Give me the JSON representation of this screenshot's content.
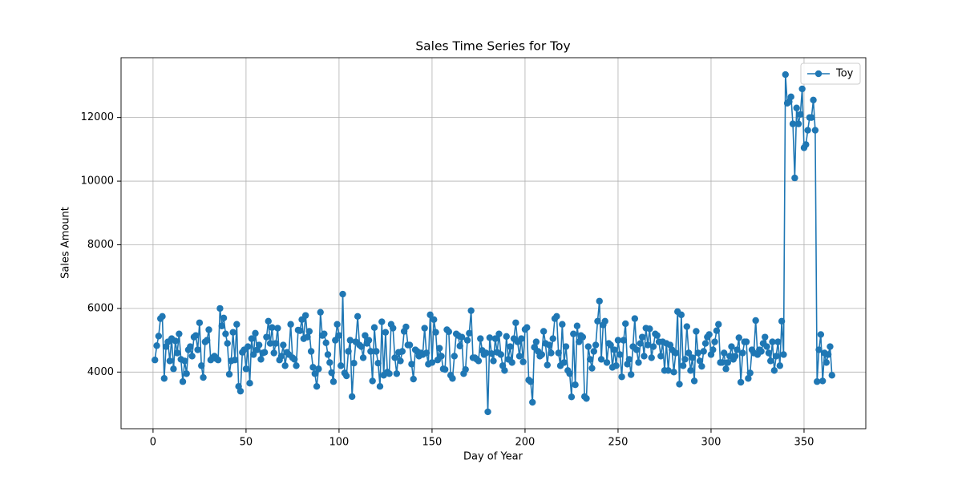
{
  "chart_data": {
    "type": "line",
    "title": "Sales Time Series for Toy",
    "xlabel": "Day of Year",
    "ylabel": "Sales Amount",
    "x": [
      1,
      2,
      3,
      4,
      5,
      6,
      7,
      8,
      9,
      10,
      11,
      12,
      13,
      14,
      15,
      16,
      17,
      18,
      19,
      20,
      21,
      22,
      23,
      24,
      25,
      26,
      27,
      28,
      29,
      30,
      31,
      32,
      33,
      34,
      35,
      36,
      37,
      38,
      39,
      40,
      41,
      42,
      43,
      44,
      45,
      46,
      47,
      48,
      49,
      50,
      51,
      52,
      53,
      54,
      55,
      56,
      57,
      58,
      59,
      60,
      61,
      62,
      63,
      64,
      65,
      66,
      67,
      68,
      69,
      70,
      71,
      72,
      73,
      74,
      75,
      76,
      77,
      78,
      79,
      80,
      81,
      82,
      83,
      84,
      85,
      86,
      87,
      88,
      89,
      90,
      91,
      92,
      93,
      94,
      95,
      96,
      97,
      98,
      99,
      100,
      101,
      102,
      103,
      104,
      105,
      106,
      107,
      108,
      109,
      110,
      111,
      112,
      113,
      114,
      115,
      116,
      117,
      118,
      119,
      120,
      121,
      122,
      123,
      124,
      125,
      126,
      127,
      128,
      129,
      130,
      131,
      132,
      133,
      134,
      135,
      136,
      137,
      138,
      139,
      140,
      141,
      142,
      143,
      144,
      145,
      146,
      147,
      148,
      149,
      150,
      151,
      152,
      153,
      154,
      155,
      156,
      157,
      158,
      159,
      160,
      161,
      162,
      163,
      164,
      165,
      166,
      167,
      168,
      169,
      170,
      171,
      172,
      173,
      174,
      175,
      176,
      177,
      178,
      179,
      180,
      181,
      182,
      183,
      184,
      185,
      186,
      187,
      188,
      189,
      190,
      191,
      192,
      193,
      194,
      195,
      196,
      197,
      198,
      199,
      200,
      201,
      202,
      203,
      204,
      205,
      206,
      207,
      208,
      209,
      210,
      211,
      212,
      213,
      214,
      215,
      216,
      217,
      218,
      219,
      220,
      221,
      222,
      223,
      224,
      225,
      226,
      227,
      228,
      229,
      230,
      231,
      232,
      233,
      234,
      235,
      236,
      237,
      238,
      239,
      240,
      241,
      242,
      243,
      244,
      245,
      246,
      247,
      248,
      249,
      250,
      251,
      252,
      253,
      254,
      255,
      256,
      257,
      258,
      259,
      260,
      261,
      262,
      263,
      264,
      265,
      266,
      267,
      268,
      269,
      270,
      271,
      272,
      273,
      274,
      275,
      276,
      277,
      278,
      279,
      280,
      281,
      282,
      283,
      284,
      285,
      286,
      287,
      288,
      289,
      290,
      291,
      292,
      293,
      294,
      295,
      296,
      297,
      298,
      299,
      300,
      301,
      302,
      303,
      304,
      305,
      306,
      307,
      308,
      309,
      310,
      311,
      312,
      313,
      314,
      315,
      316,
      317,
      318,
      319,
      320,
      321,
      322,
      323,
      324,
      325,
      326,
      327,
      328,
      329,
      330,
      331,
      332,
      333,
      334,
      335,
      336,
      337,
      338,
      339,
      340,
      341,
      342,
      343,
      344,
      345,
      346,
      347,
      348,
      349,
      350,
      351,
      352,
      353,
      354,
      355,
      356,
      357,
      358,
      359,
      360,
      361,
      362,
      363,
      364,
      365
    ],
    "series": [
      {
        "name": "Toy",
        "color": "#1f77b4",
        "values": [
          4380,
          4830,
          5130,
          5680,
          5750,
          3800,
          4800,
          4950,
          4350,
          5050,
          4100,
          4980,
          4600,
          5200,
          4400,
          3700,
          4350,
          3950,
          4700,
          4800,
          4500,
          5100,
          5150,
          4700,
          5550,
          4200,
          3830,
          4950,
          5000,
          5330,
          4380,
          4450,
          4500,
          4420,
          4380,
          6000,
          5450,
          5700,
          5200,
          4900,
          3930,
          4350,
          5250,
          4380,
          5500,
          3550,
          3400,
          4620,
          4700,
          4100,
          4800,
          3650,
          5050,
          4550,
          5220,
          4700,
          4850,
          4400,
          4600,
          4620,
          5100,
          5600,
          4900,
          5400,
          4600,
          4900,
          5380,
          4380,
          4500,
          4850,
          4200,
          4620,
          4550,
          5500,
          4450,
          4400,
          4200,
          5320,
          5300,
          5650,
          5050,
          5780,
          5100,
          5280,
          4650,
          4150,
          3950,
          3550,
          4100,
          5880,
          5150,
          5200,
          4920,
          4550,
          4300,
          3980,
          3700,
          5000,
          5500,
          5150,
          4200,
          6450,
          3970,
          3880,
          4650,
          5000,
          3230,
          4280,
          4950,
          5750,
          4850,
          4800,
          4450,
          5150,
          4900,
          5000,
          4650,
          3720,
          5400,
          4650,
          4280,
          3550,
          5580,
          3900,
          5250,
          4000,
          3950,
          5500,
          5380,
          4450,
          3950,
          4620,
          4350,
          4650,
          5280,
          5420,
          4850,
          4850,
          4250,
          3780,
          4700,
          4650,
          4500,
          4600,
          4550,
          5380,
          4600,
          4250,
          5800,
          4300,
          5650,
          5250,
          4380,
          4750,
          4500,
          4100,
          4080,
          5330,
          5270,
          3900,
          3800,
          4500,
          5200,
          5150,
          4820,
          5100,
          3950,
          4080,
          5000,
          5220,
          5930,
          4450,
          4450,
          4400,
          4350,
          5050,
          4680,
          4550,
          4600,
          2750,
          5080,
          4580,
          4350,
          5050,
          4620,
          5200,
          4550,
          4200,
          4050,
          5120,
          4400,
          4800,
          4300,
          5050,
          5550,
          4950,
          4500,
          5050,
          4320,
          5340,
          5400,
          3750,
          3700,
          3050,
          4780,
          4950,
          4650,
          4500,
          4550,
          5280,
          4900,
          4220,
          4850,
          4600,
          5050,
          5680,
          5750,
          4600,
          4200,
          5500,
          4300,
          4800,
          4050,
          3950,
          3220,
          5200,
          3600,
          5450,
          4950,
          5150,
          5100,
          3230,
          3170,
          4800,
          4400,
          4120,
          4650,
          4850,
          5600,
          6230,
          4400,
          5480,
          5600,
          4300,
          4900,
          4850,
          4150,
          4700,
          4200,
          5000,
          4550,
          3850,
          5000,
          5520,
          4250,
          4400,
          3920,
          4800,
          5680,
          4700,
          4300,
          4900,
          5100,
          4500,
          5380,
          4850,
          5360,
          4450,
          4800,
          5200,
          5150,
          4950,
          4500,
          4950,
          4050,
          4900,
          4050,
          4850,
          4700,
          4000,
          4600,
          5900,
          3620,
          5800,
          4200,
          4400,
          5430,
          4600,
          4050,
          4450,
          3720,
          5280,
          4600,
          4350,
          4180,
          4650,
          4900,
          5100,
          5180,
          4550,
          4700,
          4950,
          5300,
          5500,
          4300,
          4300,
          4600,
          4100,
          4300,
          4500,
          4800,
          4400,
          4500,
          4700,
          5080,
          3680,
          4600,
          4950,
          4950,
          3800,
          3970,
          4700,
          4600,
          5620,
          4550,
          4700,
          4650,
          4900,
          5100,
          4800,
          4600,
          4350,
          4950,
          4050,
          4500,
          4950,
          4200,
          5600,
          4550,
          13350,
          12450,
          12500,
          12650,
          11800,
          10100,
          12300,
          11800,
          12100,
          12900,
          11050,
          11150,
          11600,
          12000,
          12000,
          12550,
          11600,
          3700,
          4700,
          5180,
          3720,
          4600,
          4300,
          4550,
          4800,
          3900
        ]
      }
    ],
    "xlim": [
      -17.2,
      383.2
    ],
    "xticks": [
      0,
      50,
      100,
      150,
      200,
      250,
      300,
      350
    ],
    "ylim": [
      2220,
      13880
    ],
    "yticks": [
      4000,
      6000,
      8000,
      10000,
      12000
    ],
    "grid": true,
    "legend": "upper right"
  }
}
